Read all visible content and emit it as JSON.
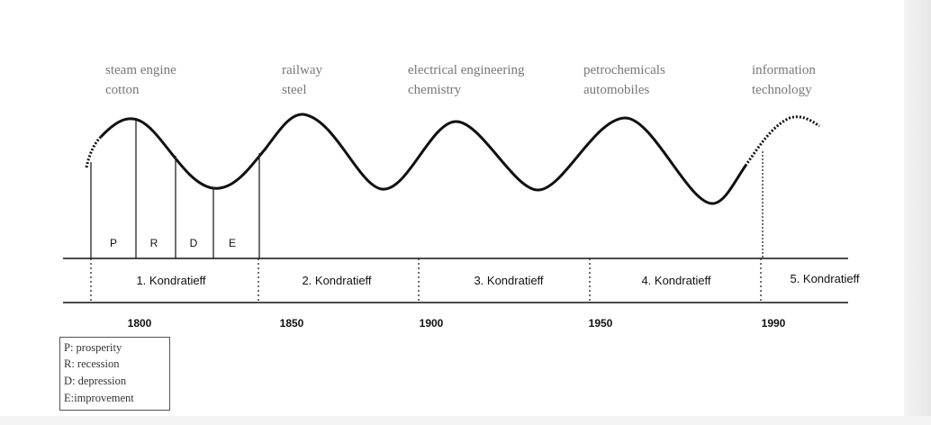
{
  "technologies": [
    {
      "line1": "steam engine",
      "line2": "cotton"
    },
    {
      "line1": "railway",
      "line2": "steel"
    },
    {
      "line1": "electrical engineering",
      "line2": "chemistry"
    },
    {
      "line1": "petrochemicals",
      "line2": "automobiles"
    },
    {
      "line1": "information",
      "line2": "technology"
    }
  ],
  "phases": [
    "P",
    "R",
    "D",
    "E"
  ],
  "waves": [
    "1. Kondratieff",
    "2. Kondratieff",
    "3. Kondratieff",
    "4. Kondratieff",
    "5. Kondratieff"
  ],
  "years": [
    "1800",
    "1850",
    "1900",
    "1950",
    "1990"
  ],
  "legend": [
    "P: prosperity",
    "R: recession",
    "D: depression",
    "E:improvement"
  ]
}
